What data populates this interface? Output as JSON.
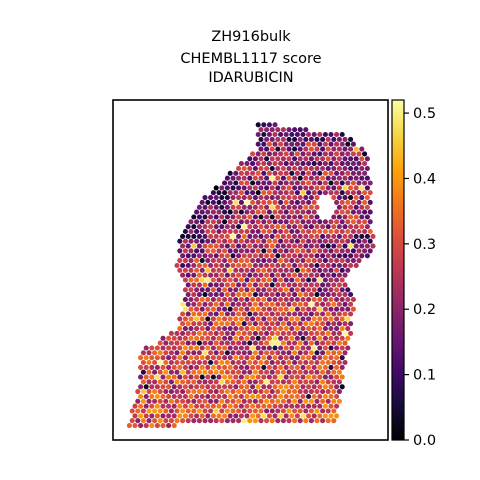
{
  "chart_data": {
    "type": "scatter",
    "title_lines": [
      "ZH916bulk",
      "CHEMBL1117 score",
      "IDARUBICIN"
    ],
    "xlabel": "",
    "ylabel": "",
    "grid": false,
    "axis_ticks_shown": false,
    "marker": "hexagonal spatial spots",
    "colormap": "inferno",
    "colorbar": {
      "vmin": 0.0,
      "vmax": 0.52,
      "ticks": [
        0.0,
        0.1,
        0.2,
        0.3,
        0.4,
        0.5
      ],
      "tick_labels": [
        "0.0",
        "0.1",
        "0.2",
        "0.3",
        "0.4",
        "0.5"
      ],
      "placement": "right"
    },
    "tissue_outline_norm": [
      [
        0.52,
        0.06
      ],
      [
        0.64,
        0.08
      ],
      [
        0.84,
        0.1
      ],
      [
        0.93,
        0.15
      ],
      [
        0.94,
        0.3
      ],
      [
        0.95,
        0.44
      ],
      [
        0.85,
        0.52
      ],
      [
        0.88,
        0.6
      ],
      [
        0.86,
        0.72
      ],
      [
        0.84,
        0.8
      ],
      [
        0.83,
        0.88
      ],
      [
        0.81,
        0.95
      ],
      [
        0.05,
        0.96
      ],
      [
        0.09,
        0.86
      ],
      [
        0.1,
        0.73
      ],
      [
        0.15,
        0.72
      ],
      [
        0.23,
        0.67
      ],
      [
        0.26,
        0.56
      ],
      [
        0.23,
        0.48
      ],
      [
        0.24,
        0.42
      ],
      [
        0.27,
        0.36
      ],
      [
        0.34,
        0.28
      ],
      [
        0.42,
        0.22
      ],
      [
        0.52,
        0.15
      ]
    ],
    "value_regions": [
      {
        "region": "upper-left edge",
        "approx_value": 0.05
      },
      {
        "region": "upper interior",
        "approx_value": 0.22
      },
      {
        "region": "lower half",
        "approx_value": 0.3
      },
      {
        "region": "overall mean",
        "approx_value": 0.25
      }
    ]
  },
  "colors": {
    "frame": "#000000",
    "background": "#ffffff"
  }
}
